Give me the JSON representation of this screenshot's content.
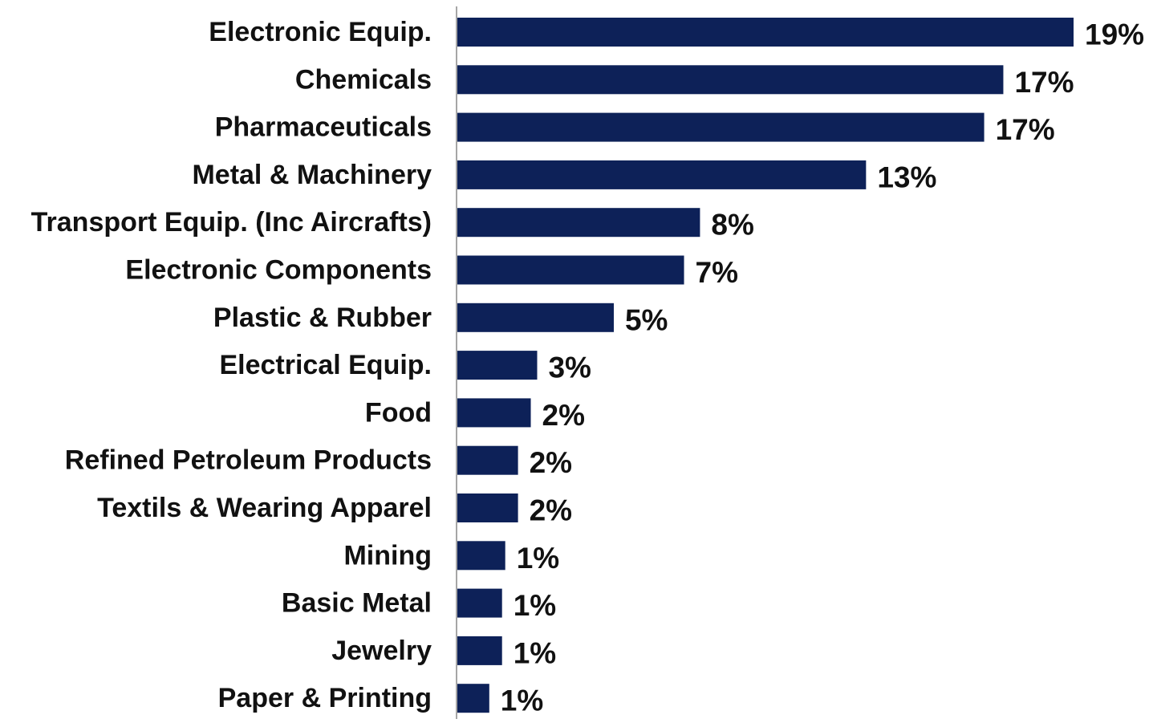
{
  "chart_data": {
    "type": "bar",
    "orientation": "horizontal",
    "categories": [
      "Electronic Equip.",
      "Chemicals",
      "Pharmaceuticals",
      "Metal & Machinery",
      "Transport Equip. (Inc Aircrafts)",
      "Electronic Components",
      "Plastic & Rubber",
      "Electrical Equip.",
      "Food",
      "Refined Petroleum Products",
      "Textils & Wearing Apparel",
      "Mining",
      "Basic Metal",
      "Jewelry",
      "Paper & Printing"
    ],
    "values": [
      19.3,
      17.1,
      16.5,
      12.8,
      7.6,
      7.1,
      4.9,
      2.5,
      2.3,
      1.9,
      1.9,
      1.5,
      1.4,
      1.4,
      1.0
    ],
    "data_labels": [
      "19%",
      "17%",
      "17%",
      "13%",
      "8%",
      "7%",
      "5%",
      "3%",
      "2%",
      "2%",
      "2%",
      "1%",
      "1%",
      "1%",
      "1%"
    ],
    "xlim": [
      0,
      19.3
    ],
    "bar_color": "#0d2158",
    "axis_color": "#a6a6a6",
    "grid": false,
    "legend": "none",
    "title": "",
    "xlabel": "",
    "ylabel": ""
  }
}
